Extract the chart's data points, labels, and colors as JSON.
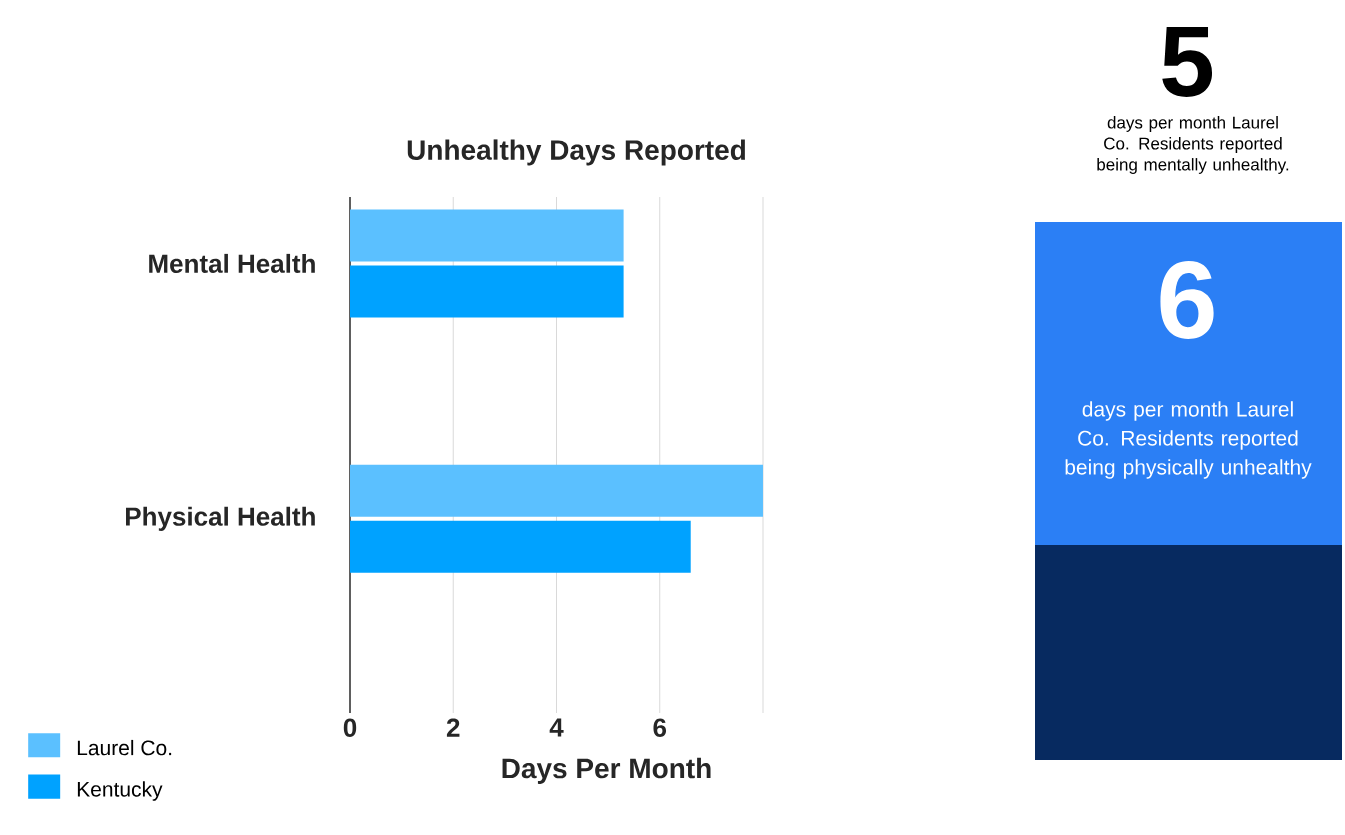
{
  "chart_data": {
    "type": "bar",
    "orientation": "horizontal",
    "title": "Unhealthy Days Reported",
    "xlabel": "Days Per Month",
    "categories": [
      "Mental  Health",
      "Physical Health"
    ],
    "series": [
      {
        "name": "Laurel Co.",
        "color": "#5bc0ff",
        "values": [
          5.3,
          8.0
        ]
      },
      {
        "name": "Kentucky",
        "color": "#00a2ff",
        "values": [
          5.3,
          6.6
        ]
      }
    ],
    "xlim": [
      0,
      8
    ],
    "xticks": [
      0,
      2,
      4,
      6,
      {
        "value": 8,
        "label": null
      }
    ],
    "grid": "x",
    "legend": "bottom left",
    "annotations": [
      "5",
      "days per month Laurel Co. Residents reported being mentally unhealthy.",
      "6",
      "days per month Laurel Co. Residents reported being physically unhealthy"
    ]
  }
}
